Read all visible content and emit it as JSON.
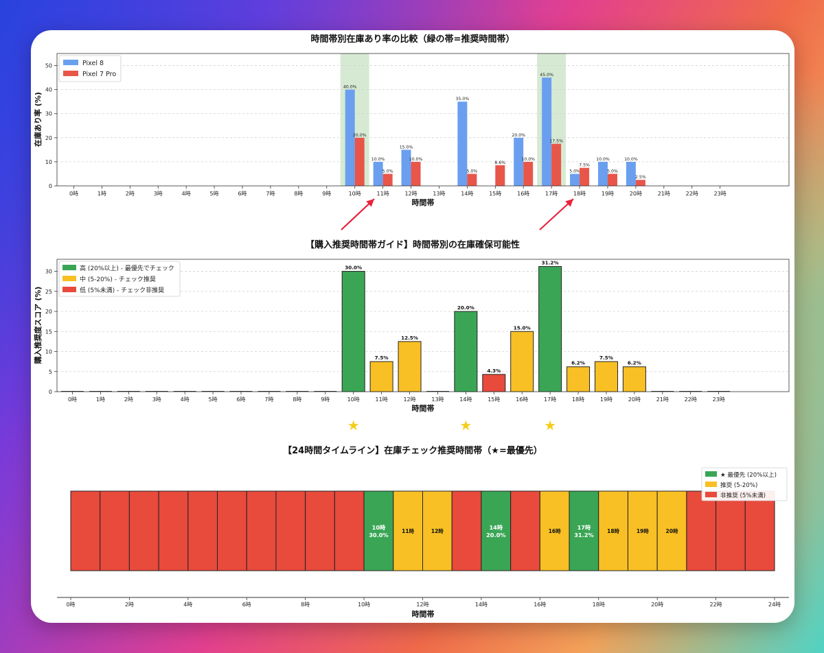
{
  "colors": {
    "pixel8": "#6a9ff0",
    "pixel7pro": "#e8564a",
    "high": "#3aa655",
    "mid": "#f8c024",
    "low": "#e84a3c",
    "star": "#f5cc1c",
    "arrow": "#e8223c",
    "recommend_band": "#cfe6cb"
  },
  "hours": [
    "0時",
    "1時",
    "2時",
    "3時",
    "4時",
    "5時",
    "6時",
    "7時",
    "8時",
    "9時",
    "10時",
    "11時",
    "12時",
    "13時",
    "14時",
    "15時",
    "16時",
    "17時",
    "18時",
    "19時",
    "20時",
    "21時",
    "22時",
    "23時"
  ],
  "chart_data": [
    {
      "type": "bar",
      "title": "時間帯別在庫あり率の比較（緑の帯=推奨時間帯）",
      "xlabel": "時間帯",
      "ylabel": "在庫あり率 (%)",
      "ylim": [
        0,
        55
      ],
      "yticks": [
        0,
        10,
        20,
        30,
        40,
        50
      ],
      "categories": [
        "0時",
        "1時",
        "2時",
        "3時",
        "4時",
        "5時",
        "6時",
        "7時",
        "8時",
        "9時",
        "10時",
        "11時",
        "12時",
        "13時",
        "14時",
        "15時",
        "16時",
        "17時",
        "18時",
        "19時",
        "20時",
        "21時",
        "22時",
        "23時"
      ],
      "highlight_categories": [
        "10時",
        "17時"
      ],
      "legend_position": "top-left",
      "series": [
        {
          "name": "Pixel 8",
          "values": [
            0,
            0,
            0,
            0,
            0,
            0,
            0,
            0,
            0,
            0,
            40,
            10,
            15,
            0,
            35,
            0,
            20,
            45,
            5,
            10,
            10,
            0,
            0,
            0
          ],
          "labels": [
            "",
            "",
            "",
            "",
            "",
            "",
            "",
            "",
            "",
            "",
            "40.0%",
            "10.0%",
            "15.0%",
            "",
            "35.0%",
            "",
            "20.0%",
            "45.0%",
            "5.0%",
            "10.0%",
            "10.0%",
            "",
            "",
            ""
          ]
        },
        {
          "name": "Pixel 7 Pro",
          "values": [
            0,
            0,
            0,
            0,
            0,
            0,
            0,
            0,
            0,
            0,
            20,
            5,
            10,
            0,
            5,
            8.6,
            10,
            17.5,
            7.5,
            5,
            2.5,
            0,
            0,
            0
          ],
          "labels": [
            "",
            "",
            "",
            "",
            "",
            "",
            "",
            "",
            "",
            "",
            "20.0%",
            "5.0%",
            "10.0%",
            "",
            "5.0%",
            "8.6%",
            "10.0%",
            "17.5%",
            "7.5%",
            "5.0%",
            "2.5%",
            "",
            "",
            ""
          ]
        }
      ]
    },
    {
      "type": "bar",
      "title": "【購入推奨時間帯ガイド】時間帯別の在庫確保可能性",
      "xlabel": "時間帯",
      "ylabel": "購入推奨度スコア (%)",
      "ylim": [
        0,
        33
      ],
      "yticks": [
        0,
        5,
        10,
        15,
        20,
        25,
        30
      ],
      "categories": [
        "0時",
        "1時",
        "2時",
        "3時",
        "4時",
        "5時",
        "6時",
        "7時",
        "8時",
        "9時",
        "10時",
        "11時",
        "12時",
        "13時",
        "14時",
        "15時",
        "16時",
        "17時",
        "18時",
        "19時",
        "20時",
        "21時",
        "22時",
        "23時"
      ],
      "legend_position": "top-left",
      "legend": [
        "高 (20%以上) - 最優先でチェック",
        "中 (5-20%) - チェック推奨",
        "低 (5%未満) - チェック非推奨"
      ],
      "values": [
        0,
        0,
        0,
        0,
        0,
        0,
        0,
        0,
        0,
        0,
        30,
        7.5,
        12.5,
        0,
        20,
        4.3,
        15,
        31.2,
        6.2,
        7.5,
        6.2,
        0,
        0,
        0
      ],
      "levels": [
        "low",
        "low",
        "low",
        "low",
        "low",
        "low",
        "low",
        "low",
        "low",
        "low",
        "high",
        "mid",
        "mid",
        "low",
        "high",
        "low",
        "mid",
        "high",
        "mid",
        "mid",
        "mid",
        "low",
        "low",
        "low"
      ],
      "labels": [
        "",
        "",
        "",
        "",
        "",
        "",
        "",
        "",
        "",
        "",
        "30.0%",
        "7.5%",
        "12.5%",
        "",
        "20.0%",
        "4.3%",
        "15.0%",
        "31.2%",
        "6.2%",
        "7.5%",
        "6.2%",
        "",
        "",
        ""
      ],
      "stars_at": [
        "10時",
        "14時",
        "17時"
      ],
      "star_symbol": "★"
    },
    {
      "type": "timeline",
      "title": "【24時間タイムライン】在庫チェック推奨時間帯（★=最優先）",
      "xlabel": "時間帯",
      "xlim": [
        0,
        24
      ],
      "xticks": [
        "0時",
        "2時",
        "4時",
        "6時",
        "8時",
        "10時",
        "12時",
        "14時",
        "16時",
        "18時",
        "20時",
        "22時",
        "24時"
      ],
      "legend_position": "top-right",
      "legend": [
        "★ 最優先 (20%以上)",
        "推奨 (5-20%)",
        "非推奨 (5%未満)"
      ],
      "levels": [
        "low",
        "low",
        "low",
        "low",
        "low",
        "low",
        "low",
        "low",
        "low",
        "low",
        "high",
        "mid",
        "mid",
        "low",
        "high",
        "low",
        "mid",
        "high",
        "mid",
        "mid",
        "mid",
        "low",
        "low",
        "low"
      ],
      "cell_labels": [
        "",
        "",
        "",
        "",
        "",
        "",
        "",
        "",
        "",
        "",
        "10時\n30.0%",
        "11時",
        "12時",
        "",
        "14時\n20.0%",
        "",
        "16時",
        "17時\n31.2%",
        "18時",
        "19時",
        "20時",
        "",
        "",
        ""
      ]
    }
  ]
}
